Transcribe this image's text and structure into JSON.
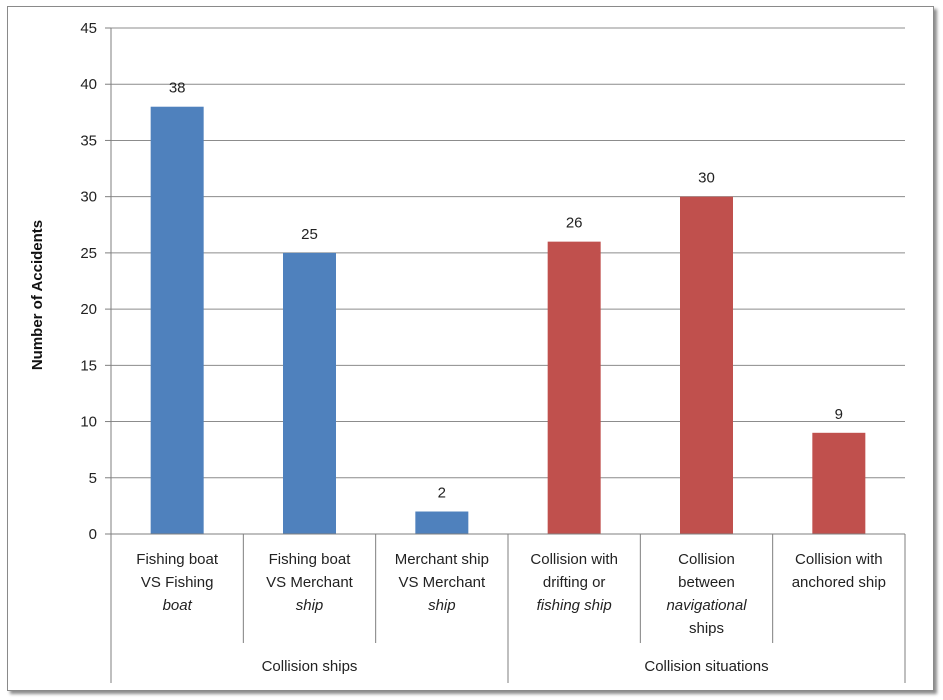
{
  "chart_data": {
    "type": "bar",
    "title": "",
    "xlabel": "",
    "ylabel": "Number of Accidents",
    "ylim": [
      0,
      45
    ],
    "yticks": [
      0,
      5,
      10,
      15,
      20,
      25,
      30,
      35,
      40,
      45
    ],
    "grid": true,
    "legend": "none",
    "categories": [
      {
        "lines": [
          {
            "text": "Fishing boat",
            "italic": false
          },
          {
            "text": "VS Fishing",
            "italic": false
          },
          {
            "text": "boat",
            "italic": true
          }
        ],
        "value": 38,
        "group": 0
      },
      {
        "lines": [
          {
            "text": "Fishing boat",
            "italic": false
          },
          {
            "text": "VS Merchant",
            "italic": false
          },
          {
            "text": "ship",
            "italic": true
          }
        ],
        "value": 25,
        "group": 0
      },
      {
        "lines": [
          {
            "text": "Merchant ship",
            "italic": false
          },
          {
            "text": "VS Merchant",
            "italic": false
          },
          {
            "text": "ship",
            "italic": true
          }
        ],
        "value": 2,
        "group": 0
      },
      {
        "lines": [
          {
            "text": "Collision with",
            "italic": false
          },
          {
            "text": "drifting or",
            "italic": false
          },
          {
            "text": "fishing ship",
            "italic": true
          }
        ],
        "value": 26,
        "group": 1
      },
      {
        "lines": [
          {
            "text": "Collision",
            "italic": false
          },
          {
            "text": "between",
            "italic": false
          },
          {
            "text": "navigational",
            "italic": true
          },
          {
            "text": "ships",
            "italic": false
          }
        ],
        "value": 30,
        "group": 1
      },
      {
        "lines": [
          {
            "text": "Collision with",
            "italic": false
          },
          {
            "text": "anchored ship",
            "italic": false
          }
        ],
        "value": 9,
        "group": 1
      }
    ],
    "groups": [
      {
        "label": "Collision ships",
        "color": "#4f81bd"
      },
      {
        "label": "Collision situations",
        "color": "#c0504d"
      }
    ]
  }
}
